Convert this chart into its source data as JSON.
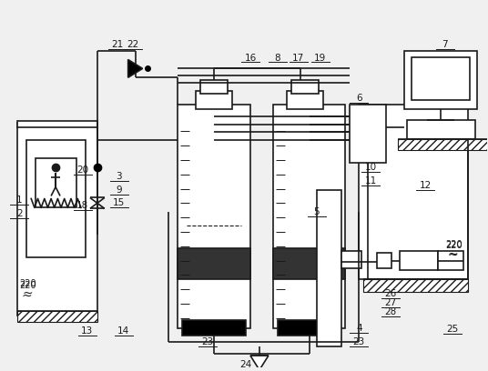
{
  "bg_color": "#f0f0f0",
  "lc": "#1a1a1a",
  "figsize": [
    5.36,
    4.08
  ],
  "dpi": 100
}
